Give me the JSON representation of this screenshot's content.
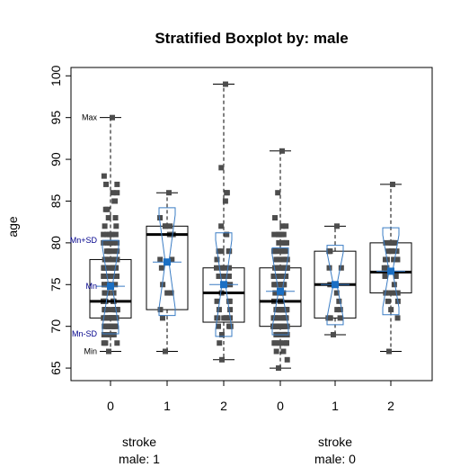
{
  "chart_data": {
    "type": "boxplot",
    "title": "Stratified Boxplot by: male",
    "ylabel": "age",
    "ylim": [
      63.5,
      101
    ],
    "yticks": [
      65,
      70,
      75,
      80,
      85,
      90,
      95,
      100
    ],
    "strata": [
      {
        "label": "male: 1",
        "factor_label": "stroke"
      },
      {
        "label": "male: 0",
        "factor_label": "stroke"
      }
    ],
    "groups": [
      {
        "label": "0",
        "stratum": 0,
        "min": 67,
        "q1": 71,
        "median": 73,
        "q3": 78,
        "max": 95,
        "mean": 74.8,
        "sd_low": 69.1,
        "sd_high": 80.3
      },
      {
        "label": "1",
        "stratum": 0,
        "min": 67,
        "q1": 72,
        "median": 81,
        "q3": 82,
        "max": 86,
        "mean": 77.7,
        "sd_low": 71.3,
        "sd_high": 84.2
      },
      {
        "label": "2",
        "stratum": 0,
        "min": 66,
        "q1": 70.5,
        "median": 74,
        "q3": 77,
        "max": 99,
        "mean": 75.0,
        "sd_low": 68.8,
        "sd_high": 81.2
      },
      {
        "label": "0",
        "stratum": 1,
        "min": 65,
        "q1": 70,
        "median": 73,
        "q3": 77,
        "max": 91,
        "mean": 74.2,
        "sd_low": 69.0,
        "sd_high": 79.4
      },
      {
        "label": "1",
        "stratum": 1,
        "min": 69,
        "q1": 71,
        "median": 75,
        "q3": 79,
        "max": 82,
        "mean": 75.0,
        "sd_low": 70.2,
        "sd_high": 79.7
      },
      {
        "label": "2",
        "stratum": 1,
        "min": 67,
        "q1": 74,
        "median": 76.5,
        "q3": 80,
        "max": 87,
        "mean": 76.6,
        "sd_low": 71.4,
        "sd_high": 81.8
      }
    ],
    "annotations": {
      "max": "Max",
      "mn_plus_sd": "Mn+SD",
      "mn": "Mn",
      "mn_minus_sd": "Mn-SD",
      "min": "Min"
    },
    "colors": {
      "points": "#4d4d4d",
      "mean": "#1a6fc4",
      "sd_box": "#3a7cc4",
      "annotation_blue": "#00008b"
    },
    "grid": false
  }
}
